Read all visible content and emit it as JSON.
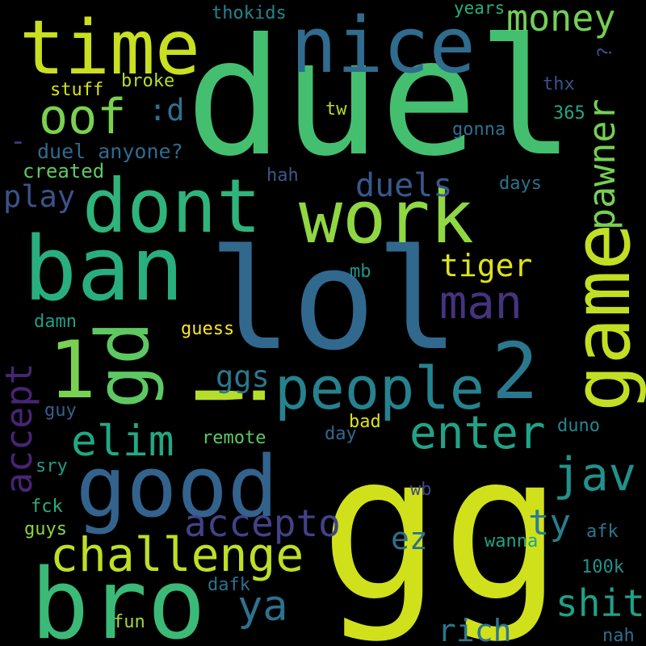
{
  "background": "#000000",
  "words": [
    {
      "text": "gg",
      "color": "#d0e11c"
    },
    {
      "text": "duel",
      "color": "#44bf70"
    },
    {
      "text": "lol",
      "color": "#31688e"
    },
    {
      "text": "time",
      "color": "#c8e020"
    },
    {
      "text": "nice",
      "color": "#2f6c8e"
    },
    {
      "text": "dont",
      "color": "#2fb47c"
    },
    {
      "text": "work",
      "color": "#90d743"
    },
    {
      "text": "ban",
      "color": "#29af7f"
    },
    {
      "text": "good",
      "color": "#33638d"
    },
    {
      "text": "bro",
      "color": "#3aba76"
    },
    {
      "text": "game",
      "color": "#c2df23"
    },
    {
      "text": "people",
      "color": "#26828e"
    },
    {
      "text": "2",
      "color": "#2a788e"
    },
    {
      "text": "1",
      "color": "#7ad151"
    },
    {
      "text": "!",
      "color": "#b5de2b"
    },
    {
      "text": "gd",
      "color": "#5ec962"
    },
    {
      "text": "oof",
      "color": "#7ad151"
    },
    {
      "text": ":d",
      "color": "#2c728e"
    },
    {
      "text": "money",
      "color": "#73d056"
    },
    {
      "text": "pawner",
      "color": "#75d054"
    },
    {
      "text": "challenge",
      "color": "#bddf26"
    },
    {
      "text": "man",
      "color": "#46337f"
    },
    {
      "text": "enter",
      "color": "#20a386"
    },
    {
      "text": "elim",
      "color": "#22a884"
    },
    {
      "text": "jav",
      "color": "#21918c"
    },
    {
      "text": "accepto",
      "color": "#414287"
    },
    {
      "text": "accept",
      "color": "#482475"
    },
    {
      "text": "ya",
      "color": "#2c728e"
    },
    {
      "text": "shit",
      "color": "#1fa088"
    },
    {
      "text": "tiger",
      "color": "#dde318"
    },
    {
      "text": "duels",
      "color": "#38588c"
    },
    {
      "text": "ggs",
      "color": "#2a788e"
    },
    {
      "text": "ty",
      "color": "#277f8e"
    },
    {
      "text": "ez",
      "color": "#2d708e"
    },
    {
      "text": "rich",
      "color": "#2b758e"
    },
    {
      "text": "play",
      "color": "#3b528b"
    },
    {
      "text": "duel anyone?",
      "color": "#306a8e"
    },
    {
      "text": "created",
      "color": "#5ec962"
    },
    {
      "text": "stuff",
      "color": "#d8e219"
    },
    {
      "text": "broke",
      "color": "#b5de2b"
    },
    {
      "text": "-",
      "color": "#443983"
    },
    {
      "text": "thokids",
      "color": "#25848e"
    },
    {
      "text": "years",
      "color": "#29af7f"
    },
    {
      "text": "?",
      "color": "#3e4989"
    },
    {
      "text": "thx",
      "color": "#3b528b"
    },
    {
      "text": "tw",
      "color": "#b5de2b"
    },
    {
      "text": "365",
      "color": "#21a585"
    },
    {
      "text": "gonna",
      "color": "#2d708e"
    },
    {
      "text": "hah",
      "color": "#38598c"
    },
    {
      "text": "days",
      "color": "#2c728e"
    },
    {
      "text": "mb",
      "color": "#1f968b"
    },
    {
      "text": "damn",
      "color": "#1f9f88"
    },
    {
      "text": "guess",
      "color": "#fde725"
    },
    {
      "text": "guy",
      "color": "#355f8d"
    },
    {
      "text": "bad",
      "color": "#dde318"
    },
    {
      "text": "remote",
      "color": "#5ec962"
    },
    {
      "text": "day",
      "color": "#31688e"
    },
    {
      "text": "duno",
      "color": "#25848e"
    },
    {
      "text": "sry",
      "color": "#1f9e89"
    },
    {
      "text": "fck",
      "color": "#29af7f"
    },
    {
      "text": "wb",
      "color": "#3f4788"
    },
    {
      "text": "guys",
      "color": "#8bd646"
    },
    {
      "text": "wanna",
      "color": "#20a386"
    },
    {
      "text": "afk",
      "color": "#2a788e"
    },
    {
      "text": "100k",
      "color": "#21918c"
    },
    {
      "text": "dafk",
      "color": "#2c728e"
    },
    {
      "text": "fun",
      "color": "#a2da37"
    },
    {
      "text": "nah",
      "color": "#2d708e"
    }
  ]
}
